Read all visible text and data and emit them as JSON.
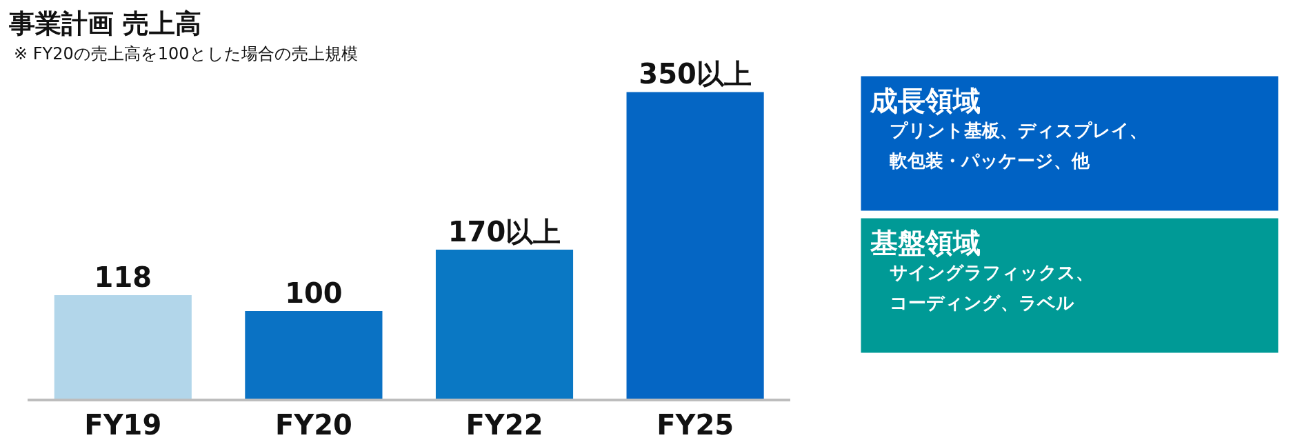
{
  "chart_data": {
    "type": "bar",
    "title": "事業計画 売上高",
    "subtitle": "※ FY20の売上高を100とした場合の売上規模",
    "categories": [
      "FY19",
      "FY20",
      "FY22",
      "FY25"
    ],
    "values": [
      118,
      100,
      170,
      350
    ],
    "colors": [
      "#b2d6ea",
      "#0a72c4",
      "#0a78c4",
      "#0566c4"
    ],
    "value_labels": [
      "118",
      "100",
      "170以上",
      "350以上"
    ],
    "grid": false,
    "tick_labels": "x",
    "annotations": [
      "成長領域",
      "プリント基板、ディスプレイ、",
      "軟包装・パッケージ、他",
      "基盤領域",
      "サイングラフィックス、",
      "コーディング、ラベル"
    ]
  }
}
